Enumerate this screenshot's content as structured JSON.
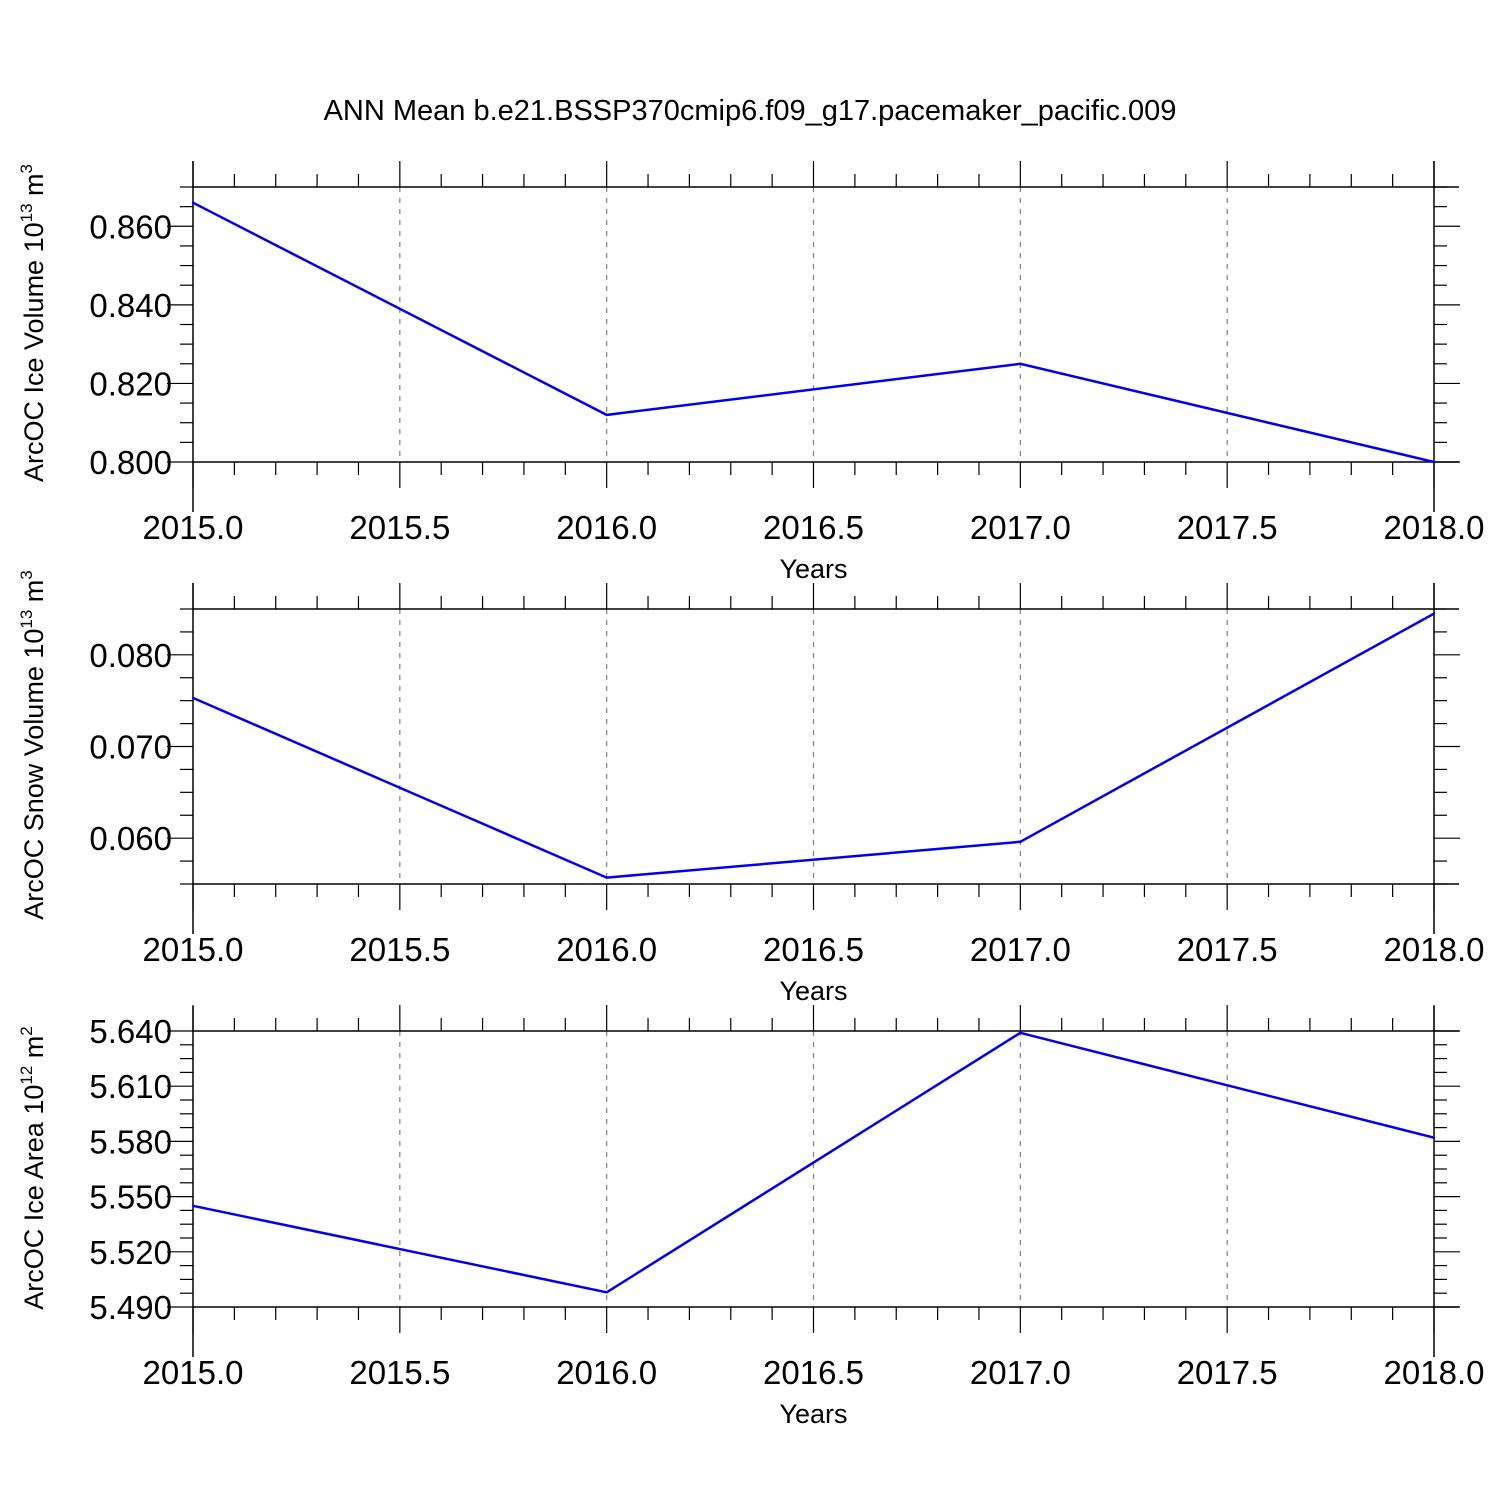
{
  "title": "ANN Mean b.e21.BSSP370cmip6.f09_g17.pacemaker_pacific.009",
  "colors": {
    "line": "#0000ee",
    "axes": "#000000",
    "grid": "#7f7f7f"
  },
  "chart_data": [
    {
      "type": "line",
      "xlabel": "Years",
      "ylabel": {
        "base": "ArcOC Ice Volume 10",
        "exp": "13",
        "unit": " m",
        "unit_exp": "3"
      },
      "x": [
        2015.0,
        2016.0,
        2017.0,
        2018.0
      ],
      "values": [
        0.866,
        0.812,
        0.825,
        0.8
      ],
      "xlim": [
        2015.0,
        2018.0
      ],
      "ylim": [
        0.8,
        0.87
      ],
      "xticks": [
        "2015.0",
        "2015.5",
        "2016.0",
        "2016.5",
        "2017.0",
        "2017.5",
        "2018.0"
      ],
      "yticks": [
        "0.800",
        "0.820",
        "0.840",
        "0.860"
      ],
      "grid": "vertical dashed"
    },
    {
      "type": "line",
      "xlabel": "Years",
      "ylabel": {
        "base": "ArcOC Snow Volume 10",
        "exp": "13",
        "unit": " m",
        "unit_exp": "3"
      },
      "x": [
        2015.0,
        2016.0,
        2017.0,
        2018.0
      ],
      "values": [
        0.0753,
        0.0557,
        0.0596,
        0.0845
      ],
      "xlim": [
        2015.0,
        2018.0
      ],
      "ylim": [
        0.055,
        0.085
      ],
      "xticks": [
        "2015.0",
        "2015.5",
        "2016.0",
        "2016.5",
        "2017.0",
        "2017.5",
        "2018.0"
      ],
      "yticks": [
        "0.060",
        "0.070",
        "0.080"
      ],
      "grid": "vertical dashed"
    },
    {
      "type": "line",
      "xlabel": "Years",
      "ylabel": {
        "base": "ArcOC Ice Area 10",
        "exp": "12",
        "unit": " m",
        "unit_exp": "2"
      },
      "x": [
        2015.0,
        2016.0,
        2017.0,
        2018.0
      ],
      "values": [
        5.545,
        5.498,
        5.639,
        5.582
      ],
      "xlim": [
        2015.0,
        2018.0
      ],
      "ylim": [
        5.49,
        5.64
      ],
      "xticks": [
        "2015.0",
        "2015.5",
        "2016.0",
        "2016.5",
        "2017.0",
        "2017.5",
        "2018.0"
      ],
      "yticks": [
        "5.490",
        "5.520",
        "5.550",
        "5.580",
        "5.610",
        "5.640"
      ],
      "grid": "vertical dashed"
    }
  ]
}
